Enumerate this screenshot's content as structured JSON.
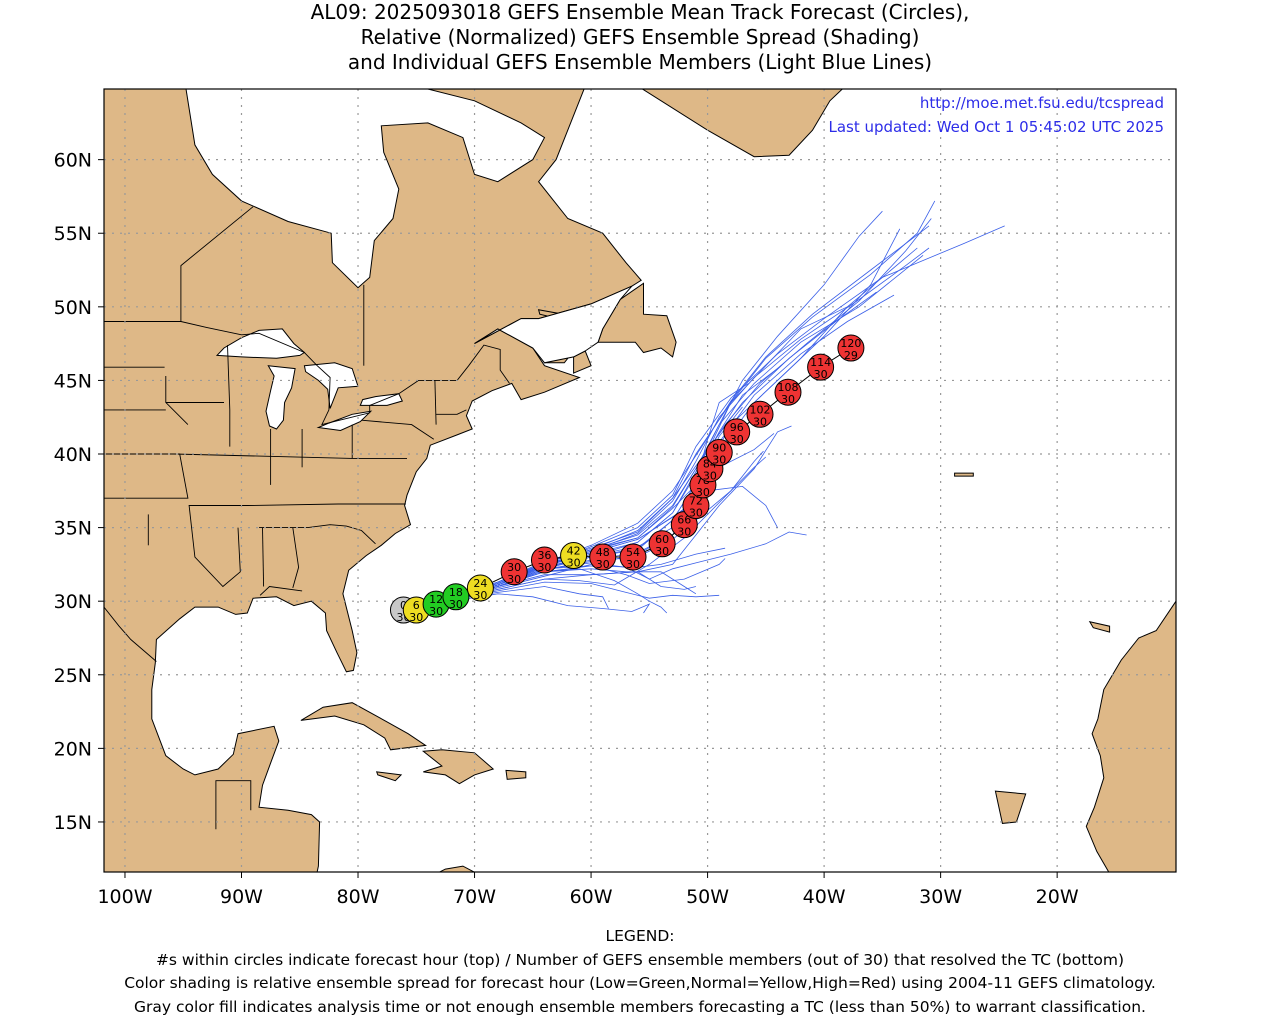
{
  "title": {
    "line1": "AL09: 2025093018 GEFS Ensemble Mean Track Forecast (Circles),",
    "line2": "Relative (Normalized) GEFS Ensemble Spread (Shading)",
    "line3": "and Individual GEFS Ensemble Members (Light Blue Lines)"
  },
  "credits": {
    "url": "http://moe.met.fsu.edu/tcspread",
    "updated": "Last updated: Wed Oct 1 05:45:02 UTC 2025"
  },
  "colors": {
    "land": "#deb887",
    "water": "#ffffff",
    "member_lines": "#3a5fe8",
    "mean_track": "#000000",
    "spread_low": "#22cc22",
    "spread_normal": "#eedd22",
    "spread_high": "#ee3333",
    "analysis": "#c8c8c8",
    "credit_text": "#2d2de8"
  },
  "map": {
    "lon_range": [
      -101.8,
      -9.8
    ],
    "lat_range": [
      11.6,
      64.8
    ],
    "lon_ticks": [
      -100,
      -90,
      -80,
      -70,
      -60,
      -50,
      -40,
      -30,
      -20
    ],
    "lon_tick_labels": [
      "100W",
      "90W",
      "80W",
      "70W",
      "60W",
      "50W",
      "40W",
      "30W",
      "20W"
    ],
    "lat_ticks": [
      15,
      20,
      25,
      30,
      35,
      40,
      45,
      50,
      55,
      60
    ],
    "lat_tick_labels": [
      "15N",
      "20N",
      "25N",
      "30N",
      "35N",
      "40N",
      "45N",
      "50N",
      "55N",
      "60N"
    ],
    "grid": "dotted"
  },
  "track": [
    {
      "hour": "0",
      "members": "30",
      "lon": -76.1,
      "lat": 29.4,
      "spread": "analysis"
    },
    {
      "hour": "6",
      "members": "30",
      "lon": -75.0,
      "lat": 29.4,
      "spread": "normal"
    },
    {
      "hour": "12",
      "members": "30",
      "lon": -73.3,
      "lat": 29.8,
      "spread": "low"
    },
    {
      "hour": "18",
      "members": "30",
      "lon": -71.6,
      "lat": 30.3,
      "spread": "low"
    },
    {
      "hour": "24",
      "members": "30",
      "lon": -69.5,
      "lat": 30.9,
      "spread": "normal"
    },
    {
      "hour": "30",
      "members": "30",
      "lon": -66.6,
      "lat": 32.0,
      "spread": "high"
    },
    {
      "hour": "36",
      "members": "30",
      "lon": -64.0,
      "lat": 32.8,
      "spread": "high"
    },
    {
      "hour": "42",
      "members": "30",
      "lon": -61.5,
      "lat": 33.1,
      "spread": "normal"
    },
    {
      "hour": "48",
      "members": "30",
      "lon": -59.0,
      "lat": 33.0,
      "spread": "high"
    },
    {
      "hour": "54",
      "members": "30",
      "lon": -56.4,
      "lat": 33.0,
      "spread": "high"
    },
    {
      "hour": "60",
      "members": "30",
      "lon": -53.9,
      "lat": 33.9,
      "spread": "high"
    },
    {
      "hour": "66",
      "members": "30",
      "lon": -52.0,
      "lat": 35.2,
      "spread": "high"
    },
    {
      "hour": "72",
      "members": "30",
      "lon": -51.0,
      "lat": 36.5,
      "spread": "high"
    },
    {
      "hour": "78",
      "members": "30",
      "lon": -50.4,
      "lat": 37.9,
      "spread": "high"
    },
    {
      "hour": "84",
      "members": "30",
      "lon": -49.8,
      "lat": 39.0,
      "spread": "high"
    },
    {
      "hour": "90",
      "members": "30",
      "lon": -49.0,
      "lat": 40.1,
      "spread": "high"
    },
    {
      "hour": "96",
      "members": "30",
      "lon": -47.5,
      "lat": 41.5,
      "spread": "high"
    },
    {
      "hour": "102",
      "members": "30",
      "lon": -45.5,
      "lat": 42.7,
      "spread": "high"
    },
    {
      "hour": "108",
      "members": "30",
      "lon": -43.1,
      "lat": 44.2,
      "spread": "high"
    },
    {
      "hour": "114",
      "members": "30",
      "lon": -40.3,
      "lat": 45.9,
      "spread": "high"
    },
    {
      "hour": "120",
      "members": "29",
      "lon": -37.7,
      "lat": 47.2,
      "spread": "high"
    }
  ],
  "members": [
    [
      [
        -76.1,
        29.4
      ],
      [
        -72,
        30.3
      ],
      [
        -68,
        31.1
      ],
      [
        -64,
        32.5
      ],
      [
        -60,
        33.3
      ],
      [
        -56,
        34.2
      ],
      [
        -52,
        36.2
      ],
      [
        -50,
        39
      ],
      [
        -48,
        42
      ],
      [
        -44,
        45
      ],
      [
        -40,
        48
      ],
      [
        -36,
        51.5
      ],
      [
        -33.5,
        55.3
      ]
    ],
    [
      [
        -76.1,
        29.4
      ],
      [
        -72,
        30.2
      ],
      [
        -68,
        31.0
      ],
      [
        -64,
        32.1
      ],
      [
        -60,
        32.8
      ],
      [
        -56,
        33.3
      ],
      [
        -53,
        34.5
      ],
      [
        -51,
        37
      ],
      [
        -49,
        40.3
      ],
      [
        -46,
        43.5
      ],
      [
        -42,
        46.5
      ],
      [
        -38,
        50
      ],
      [
        -32,
        54
      ]
    ],
    [
      [
        -76.1,
        29.4
      ],
      [
        -72,
        30.1
      ],
      [
        -68,
        30.7
      ],
      [
        -64,
        31.3
      ],
      [
        -60,
        31.2
      ],
      [
        -57,
        30.6
      ],
      [
        -55,
        30.2
      ],
      [
        -53,
        30.4
      ],
      [
        -51,
        30.3
      ],
      [
        -49,
        30.4
      ]
    ],
    [
      [
        -76.1,
        29.4
      ],
      [
        -72,
        30.2
      ],
      [
        -68,
        31.0
      ],
      [
        -64,
        32.2
      ],
      [
        -60,
        32.4
      ],
      [
        -56,
        32.3
      ],
      [
        -54,
        32.5
      ],
      [
        -51,
        33.2
      ],
      [
        -48.5,
        33.6
      ]
    ],
    [
      [
        -76.1,
        29.4
      ],
      [
        -72,
        30.0
      ],
      [
        -68,
        30.5
      ],
      [
        -65,
        30.3
      ],
      [
        -62,
        29.7
      ],
      [
        -59,
        29.5
      ],
      [
        -56.5,
        29.3
      ],
      [
        -55,
        29.8
      ],
      [
        -55.5,
        29.2
      ]
    ],
    [
      [
        -76.1,
        29.4
      ],
      [
        -72,
        30.3
      ],
      [
        -68,
        31.3
      ],
      [
        -64,
        32.6
      ],
      [
        -60,
        33.5
      ],
      [
        -56,
        34.5
      ],
      [
        -53,
        36.5
      ],
      [
        -51,
        39
      ],
      [
        -49,
        42
      ],
      [
        -46,
        44.8
      ],
      [
        -42,
        47.6
      ],
      [
        -37,
        50
      ],
      [
        -31.5,
        53.5
      ]
    ],
    [
      [
        -76.1,
        29.4
      ],
      [
        -72,
        30.2
      ],
      [
        -68,
        31.2
      ],
      [
        -64,
        32.5
      ],
      [
        -60,
        33.7
      ],
      [
        -56,
        35
      ],
      [
        -53,
        37.2
      ],
      [
        -51,
        40.5
      ],
      [
        -48,
        43.8
      ],
      [
        -44,
        46.8
      ],
      [
        -40,
        49.2
      ],
      [
        -35,
        52
      ],
      [
        -28,
        54.3
      ],
      [
        -24.5,
        55.5
      ]
    ],
    [
      [
        -76.1,
        29.4
      ],
      [
        -72,
        30.2
      ],
      [
        -68,
        31.1
      ],
      [
        -64,
        32.3
      ],
      [
        -60,
        33.0
      ],
      [
        -56,
        33.5
      ],
      [
        -53,
        35.5
      ],
      [
        -51,
        38
      ],
      [
        -50,
        41
      ],
      [
        -49,
        43.5
      ],
      [
        -46.5,
        44.8
      ]
    ],
    [
      [
        -76.1,
        29.4
      ],
      [
        -72,
        30.3
      ],
      [
        -68,
        31.2
      ],
      [
        -64,
        32.6
      ],
      [
        -60,
        33.5
      ],
      [
        -56,
        34.3
      ],
      [
        -53,
        36.3
      ],
      [
        -50,
        38.7
      ],
      [
        -46,
        40.3
      ],
      [
        -44.3,
        41.4
      ]
    ],
    [
      [
        -76.1,
        29.4
      ],
      [
        -72,
        30.1
      ],
      [
        -68,
        30.8
      ],
      [
        -64,
        31.5
      ],
      [
        -61,
        31.4
      ],
      [
        -58,
        31.1
      ],
      [
        -55,
        32.5
      ],
      [
        -52,
        34.3
      ],
      [
        -49,
        36.7
      ],
      [
        -46,
        39.1
      ],
      [
        -45,
        39.8
      ]
    ],
    [
      [
        -76.1,
        29.4
      ],
      [
        -72,
        30.2
      ],
      [
        -68,
        31.0
      ],
      [
        -64,
        31.8
      ],
      [
        -60,
        31.8
      ],
      [
        -56,
        32.0
      ],
      [
        -54,
        31.0
      ],
      [
        -52,
        30.8
      ],
      [
        -51,
        31.0
      ]
    ],
    [
      [
        -76.1,
        29.4
      ],
      [
        -72,
        30.3
      ],
      [
        -68,
        31.3
      ],
      [
        -64,
        32.7
      ],
      [
        -60,
        33.6
      ],
      [
        -56,
        34.7
      ],
      [
        -53,
        37
      ],
      [
        -51,
        40
      ],
      [
        -48,
        43.5
      ],
      [
        -45,
        46.5
      ],
      [
        -41,
        49.3
      ],
      [
        -36,
        52.2
      ],
      [
        -32,
        55
      ],
      [
        -30.5,
        57.2
      ]
    ],
    [
      [
        -76.1,
        29.4
      ],
      [
        -72,
        30.2
      ],
      [
        -68,
        31.0
      ],
      [
        -64,
        32.2
      ],
      [
        -60,
        32.6
      ],
      [
        -57,
        32.3
      ],
      [
        -55,
        31.5
      ],
      [
        -53,
        32.2
      ],
      [
        -51,
        32.6
      ],
      [
        -48,
        33.2
      ],
      [
        -45,
        33.9
      ],
      [
        -43,
        34.7
      ],
      [
        -41.5,
        34.5
      ]
    ],
    [
      [
        -76.1,
        29.4
      ],
      [
        -72,
        30.2
      ],
      [
        -68,
        31.1
      ],
      [
        -64,
        32.4
      ],
      [
        -60,
        33.2
      ],
      [
        -56,
        34.0
      ],
      [
        -53,
        36
      ],
      [
        -51,
        38.8
      ],
      [
        -49,
        42
      ],
      [
        -47,
        45
      ],
      [
        -44,
        48
      ],
      [
        -40,
        51.5
      ],
      [
        -37,
        54.8
      ],
      [
        -35,
        56.5
      ]
    ],
    [
      [
        -76.1,
        29.4
      ],
      [
        -72,
        30.1
      ],
      [
        -68,
        30.8
      ],
      [
        -64,
        31.5
      ],
      [
        -60,
        31.8
      ],
      [
        -56,
        32.0
      ],
      [
        -53,
        32.5
      ],
      [
        -51,
        34.5
      ],
      [
        -49,
        36.5
      ],
      [
        -46,
        39
      ],
      [
        -44,
        41.5
      ],
      [
        -42.8,
        41.9
      ]
    ],
    [
      [
        -76.1,
        29.4
      ],
      [
        -72,
        30.2
      ],
      [
        -68,
        31.0
      ],
      [
        -64,
        32.0
      ],
      [
        -61,
        32.2
      ],
      [
        -58,
        31.4
      ],
      [
        -56,
        30.5
      ],
      [
        -55,
        30.0
      ],
      [
        -54,
        29.6
      ],
      [
        -53.5,
        29.2
      ]
    ],
    [
      [
        -76.1,
        29.4
      ],
      [
        -72,
        30.3
      ],
      [
        -68,
        31.3
      ],
      [
        -64,
        32.6
      ],
      [
        -60,
        33.8
      ],
      [
        -56,
        35.3
      ],
      [
        -53,
        37.5
      ],
      [
        -50.5,
        40.5
      ],
      [
        -48,
        43.6
      ],
      [
        -45,
        46.6
      ],
      [
        -41,
        49.5
      ],
      [
        -36,
        52.5
      ],
      [
        -31,
        55.5
      ]
    ],
    [
      [
        -76.1,
        29.4
      ],
      [
        -72,
        30.2
      ],
      [
        -68,
        31.0
      ],
      [
        -64,
        32.0
      ],
      [
        -60,
        32.4
      ],
      [
        -57,
        31.8
      ],
      [
        -55,
        31.2
      ],
      [
        -52,
        31.5
      ],
      [
        -49,
        32.5
      ],
      [
        -48.5,
        32.9
      ]
    ],
    [
      [
        -76.1,
        29.4
      ],
      [
        -72,
        30.2
      ],
      [
        -68,
        31.2
      ],
      [
        -64,
        32.5
      ],
      [
        -60,
        33.4
      ],
      [
        -56,
        34.6
      ],
      [
        -53,
        36.8
      ],
      [
        -51,
        39.5
      ],
      [
        -49,
        42.5
      ],
      [
        -46,
        45.2
      ],
      [
        -42,
        47.8
      ],
      [
        -37,
        50.5
      ],
      [
        -33,
        52.8
      ],
      [
        -31,
        54
      ]
    ],
    [
      [
        -76.1,
        29.4
      ],
      [
        -72,
        30.1
      ],
      [
        -68,
        30.9
      ],
      [
        -64,
        31.7
      ],
      [
        -60,
        32.5
      ],
      [
        -56,
        33.2
      ],
      [
        -53,
        34.5
      ],
      [
        -51,
        36.5
      ],
      [
        -50,
        39.5
      ],
      [
        -49,
        41.2
      ],
      [
        -47,
        43.2
      ]
    ],
    [
      [
        -76.1,
        29.4
      ],
      [
        -72,
        30.2
      ],
      [
        -68,
        31.1
      ],
      [
        -64,
        32.3
      ],
      [
        -60,
        33.1
      ],
      [
        -56,
        33.7
      ],
      [
        -53,
        35
      ],
      [
        -51,
        37.5
      ],
      [
        -49,
        40.8
      ],
      [
        -46,
        44
      ],
      [
        -42,
        46.8
      ],
      [
        -38,
        49
      ],
      [
        -34,
        50.8
      ]
    ],
    [
      [
        -76.1,
        29.4
      ],
      [
        -72,
        30.2
      ],
      [
        -68,
        31.0
      ],
      [
        -64,
        32.0
      ],
      [
        -60,
        32.2
      ],
      [
        -57,
        32.0
      ],
      [
        -54,
        32.0
      ],
      [
        -52,
        31.0
      ],
      [
        -51,
        30.5
      ]
    ],
    [
      [
        -76.1,
        29.4
      ],
      [
        -72,
        30.3
      ],
      [
        -68,
        31.2
      ],
      [
        -64,
        32.4
      ],
      [
        -60,
        33.4
      ],
      [
        -56,
        34.3
      ],
      [
        -53,
        36.4
      ],
      [
        -51,
        39
      ],
      [
        -48.5,
        42
      ],
      [
        -45.5,
        44.8
      ],
      [
        -41.5,
        47.5
      ],
      [
        -37,
        50.4
      ],
      [
        -33,
        53.8
      ],
      [
        -30.8,
        56
      ]
    ],
    [
      [
        -76.1,
        29.4
      ],
      [
        -72,
        30.1
      ],
      [
        -68,
        30.6
      ],
      [
        -64,
        31.0
      ],
      [
        -61,
        30.5
      ],
      [
        -59,
        30.3
      ],
      [
        -58.5,
        29.5
      ]
    ],
    [
      [
        -76.1,
        29.4
      ],
      [
        -72,
        30.2
      ],
      [
        -68,
        31.1
      ],
      [
        -64,
        32.2
      ],
      [
        -60,
        33.0
      ],
      [
        -56,
        34.0
      ],
      [
        -53,
        36
      ],
      [
        -51,
        38.6
      ],
      [
        -49,
        41.5
      ],
      [
        -47,
        44
      ],
      [
        -44,
        45.8
      ]
    ],
    [
      [
        -76.1,
        29.4
      ],
      [
        -72,
        30.3
      ],
      [
        -68,
        31.2
      ],
      [
        -64,
        32.6
      ],
      [
        -60,
        33.5
      ],
      [
        -56,
        34.8
      ],
      [
        -53,
        37
      ],
      [
        -50,
        40.3
      ],
      [
        -47,
        43.5
      ],
      [
        -43,
        46.5
      ],
      [
        -39,
        49
      ],
      [
        -35.5,
        51
      ]
    ],
    [
      [
        -76.1,
        29.4
      ],
      [
        -72,
        30.2
      ],
      [
        -68,
        31.0
      ],
      [
        -64,
        32.1
      ],
      [
        -60,
        32.7
      ],
      [
        -56,
        33.0
      ],
      [
        -53,
        34.2
      ],
      [
        -51,
        35.5
      ],
      [
        -48,
        37.5
      ],
      [
        -46,
        39.5
      ],
      [
        -45.2,
        40.2
      ]
    ],
    [
      [
        -76.1,
        29.4
      ],
      [
        -72,
        30.2
      ],
      [
        -68,
        31.1
      ],
      [
        -64,
        32.4
      ],
      [
        -60,
        33.3
      ],
      [
        -56,
        34.2
      ],
      [
        -52.5,
        36
      ],
      [
        -50,
        37.5
      ],
      [
        -47,
        37.8
      ],
      [
        -45,
        36.5
      ],
      [
        -44,
        35
      ]
    ],
    [
      [
        -76.1,
        29.4
      ],
      [
        -72,
        30.2
      ],
      [
        -68,
        31.1
      ],
      [
        -64,
        32.3
      ],
      [
        -60,
        33.0
      ],
      [
        -56,
        33.6
      ],
      [
        -53,
        35.5
      ],
      [
        -51,
        38
      ],
      [
        -49.5,
        41
      ],
      [
        -48,
        43.5
      ],
      [
        -45,
        46
      ],
      [
        -42,
        48.5
      ],
      [
        -38,
        50
      ]
    ]
  ],
  "legend": {
    "heading": "LEGEND:",
    "line1": "#s within circles indicate forecast hour (top) / Number of GEFS ensemble members (out of 30) that resolved the TC (bottom)",
    "line2": "Color shading is relative ensemble spread for forecast hour (Low=Green,Normal=Yellow,High=Red) using 2004-11 GEFS climatology.",
    "line3": "Gray color fill indicates analysis time or not enough ensemble members forecasting a TC (less than 50%) to warrant classification."
  }
}
